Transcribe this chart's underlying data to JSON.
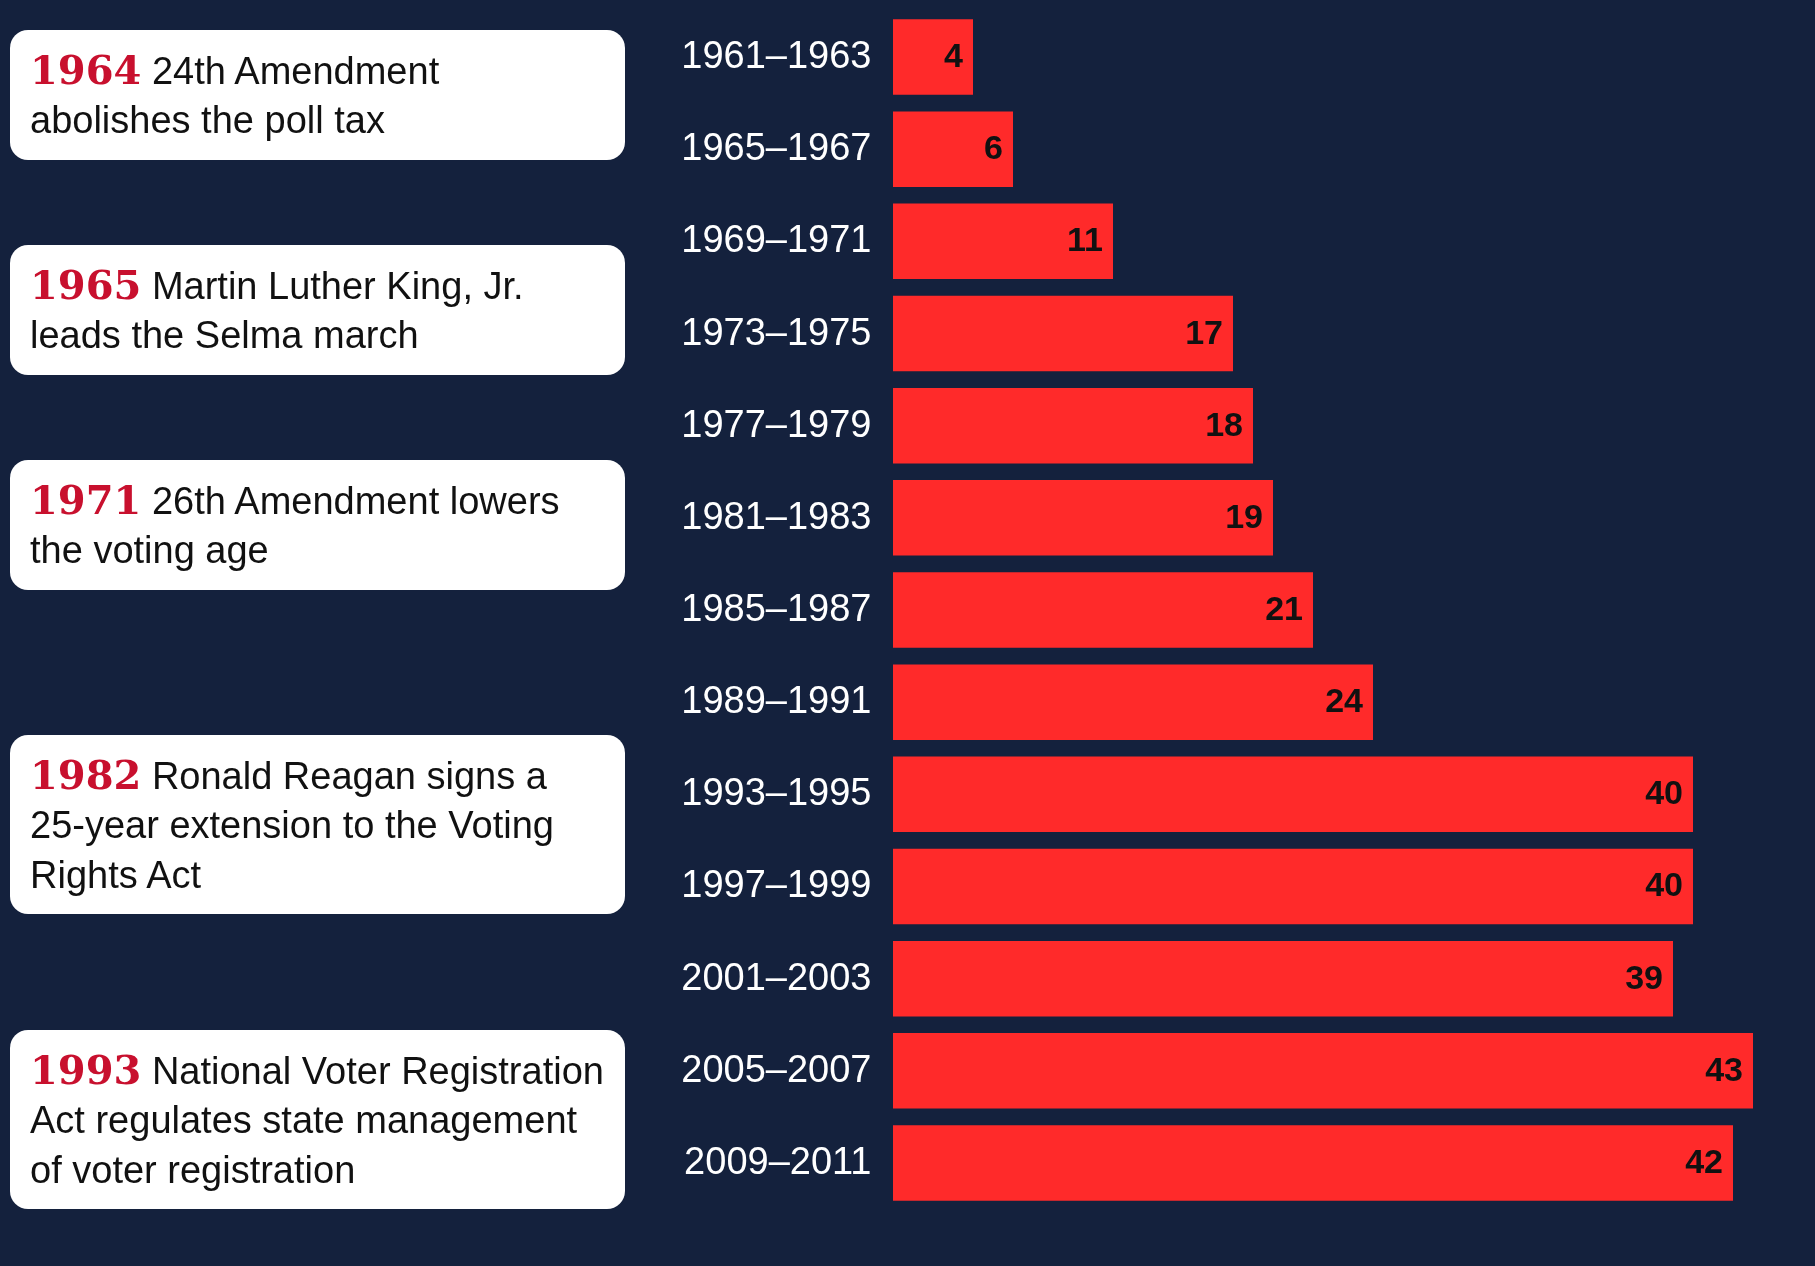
{
  "chart_data": {
    "type": "bar",
    "orientation": "horizontal",
    "data_labels": true,
    "color": "#ff2a2a",
    "categories": [
      "1961–1963",
      "1965–1967",
      "1969–1971",
      "1973–1975",
      "1977–1979",
      "1981–1983",
      "1985–1987",
      "1989–1991",
      "1993–1995",
      "1997–1999",
      "2001–2003",
      "2005–2007",
      "2009–2011"
    ],
    "values": [
      4,
      6,
      11,
      17,
      18,
      19,
      21,
      24,
      40,
      40,
      39,
      43,
      42
    ],
    "annotations": [
      "1964 24th Amendment abolishes the poll tax",
      "1965 Martin Luther King, Jr. leads the Selma march",
      "1971 26th Amendment lowers the voting age",
      "1982 Ronald Reagan signs a 25-year extension to the Voting Rights Act",
      "1993 National Voter Registration Act regulates state management of voter registration"
    ]
  }
}
